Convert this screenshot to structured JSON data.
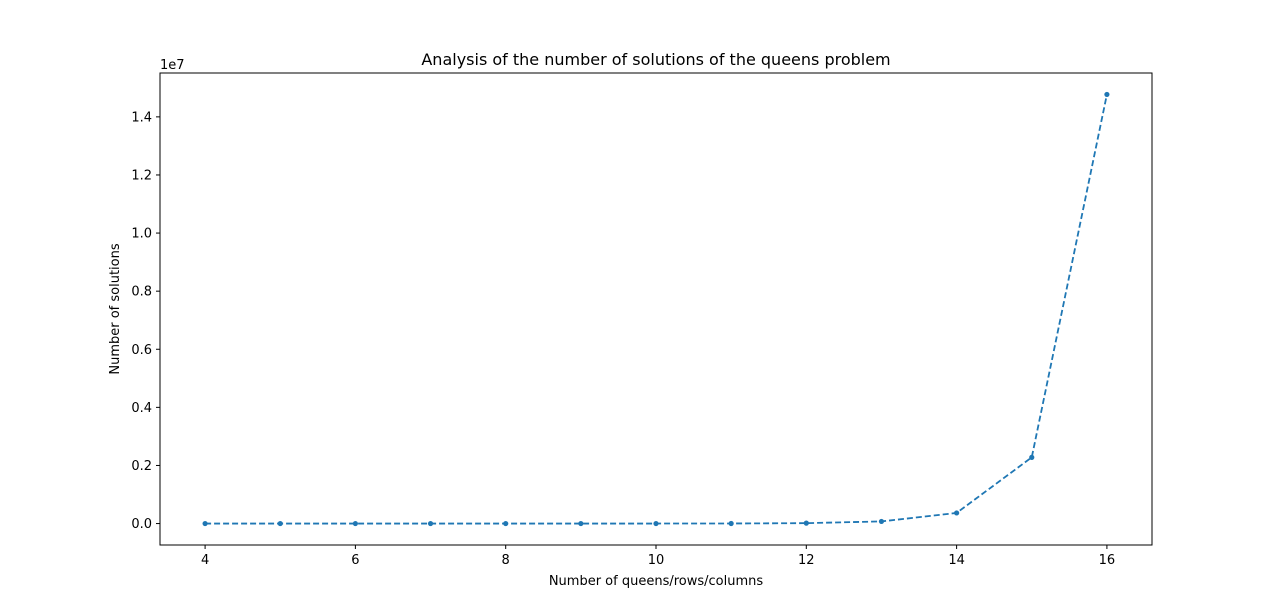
{
  "chart_data": {
    "type": "line",
    "title": "Analysis of the number of solutions of the queens problem",
    "xlabel": "Number of queens/rows/columns",
    "ylabel": "Number of solutions",
    "y_offset_label": "1e7",
    "x": [
      4,
      5,
      6,
      7,
      8,
      9,
      10,
      11,
      12,
      13,
      14,
      15,
      16
    ],
    "series": [
      {
        "values": [
          2,
          10,
          4,
          40,
          92,
          352,
          724,
          2680,
          14200,
          73712,
          365596,
          2279184,
          14772512
        ],
        "color": "#1f77b4",
        "line_style": "dashed",
        "marker": "dot"
      }
    ],
    "x_ticks": [
      4,
      6,
      8,
      10,
      12,
      14,
      16
    ],
    "x_tick_labels": [
      "4",
      "6",
      "8",
      "10",
      "12",
      "14",
      "16"
    ],
    "y_ticks": [
      0,
      2000000,
      4000000,
      6000000,
      8000000,
      10000000,
      12000000,
      14000000
    ],
    "y_tick_labels": [
      "0.0",
      "0.2",
      "0.4",
      "0.6",
      "0.8",
      "1.0",
      "1.2",
      "1.4"
    ],
    "xlim": [
      3.4,
      16.6
    ],
    "ylim": [
      -738000,
      15510000
    ],
    "grid": false,
    "legend": "none"
  }
}
